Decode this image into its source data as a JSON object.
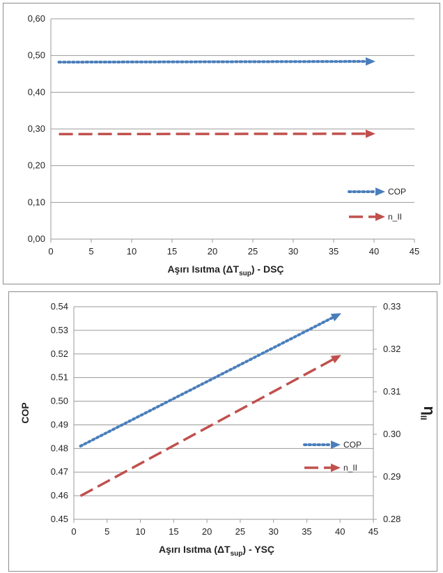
{
  "chart_data": [
    {
      "type": "line",
      "xlabel_main": "Aşırı Isıtma (ΔT",
      "xlabel_sub": "sup",
      "xlabel_tail": ") - DSÇ",
      "xlim": [
        0,
        45
      ],
      "xticks": [
        "0",
        "5",
        "10",
        "15",
        "20",
        "25",
        "30",
        "35",
        "40",
        "45"
      ],
      "ylim": [
        0,
        0.6
      ],
      "yticks": [
        "0,00",
        "0,10",
        "0,20",
        "0,30",
        "0,40",
        "0,50",
        "0,60"
      ],
      "grid": true,
      "legend_position": "right",
      "series": [
        {
          "name": "COP",
          "color": "#4a7ebb",
          "style": "dotted",
          "marker": "arrow",
          "x": [
            1,
            40
          ],
          "y": [
            0.482,
            0.484
          ]
        },
        {
          "name": "n_II",
          "color": "#c0504d",
          "style": "dashed",
          "marker": "arrow",
          "x": [
            1,
            40
          ],
          "y": [
            0.286,
            0.287
          ]
        }
      ]
    },
    {
      "type": "line",
      "xlabel_main": "Aşırı Isıtma (ΔT",
      "xlabel_sub": "sup",
      "xlabel_tail": ") - YSÇ",
      "ylabel": "COP",
      "y2label": "η",
      "y2label_sub": "II",
      "xlim": [
        0,
        45
      ],
      "xticks": [
        "0",
        "5",
        "10",
        "15",
        "20",
        "25",
        "30",
        "35",
        "40",
        "45"
      ],
      "ylim": [
        0.45,
        0.54
      ],
      "yticks": [
        "0.45",
        "0.46",
        "0.47",
        "0.48",
        "0.49",
        "0.50",
        "0.51",
        "0.52",
        "0.53",
        "0.54"
      ],
      "y2lim": [
        0.28,
        0.33
      ],
      "y2ticks": [
        "0.28",
        "0.29",
        "0.30",
        "0.31",
        "0.32",
        "0.33"
      ],
      "grid": true,
      "legend_position": "right",
      "series": [
        {
          "name": "COP",
          "axis": "left",
          "color": "#4a7ebb",
          "style": "dotted",
          "marker": "arrow",
          "x": [
            1,
            40
          ],
          "y": [
            0.481,
            0.537
          ]
        },
        {
          "name": "n_II",
          "axis": "right",
          "color": "#c0504d",
          "style": "dashed",
          "marker": "arrow",
          "x": [
            1,
            40
          ],
          "y": [
            0.2855,
            0.3185
          ]
        }
      ]
    }
  ]
}
